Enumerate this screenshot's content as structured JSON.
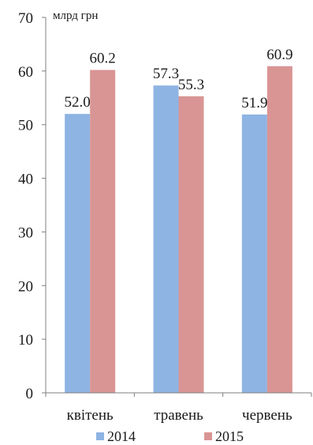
{
  "chart_data": {
    "type": "bar",
    "unit_label": "млрд грн",
    "categories": [
      "квітень",
      "травень",
      "червень"
    ],
    "series": [
      {
        "name": "2014",
        "values": [
          52.0,
          57.3,
          51.9
        ],
        "labels": [
          "52.0",
          "57.3",
          "51.9"
        ],
        "color": "#8eb4e3"
      },
      {
        "name": "2015",
        "values": [
          60.2,
          55.3,
          60.9
        ],
        "labels": [
          "60.2",
          "55.3",
          "60.9"
        ],
        "color": "#d99594"
      }
    ],
    "ylim": [
      0,
      70
    ],
    "yticks": [
      "0",
      "10",
      "20",
      "30",
      "40",
      "50",
      "60",
      "70"
    ],
    "grid": false,
    "legend_position": "bottom"
  }
}
